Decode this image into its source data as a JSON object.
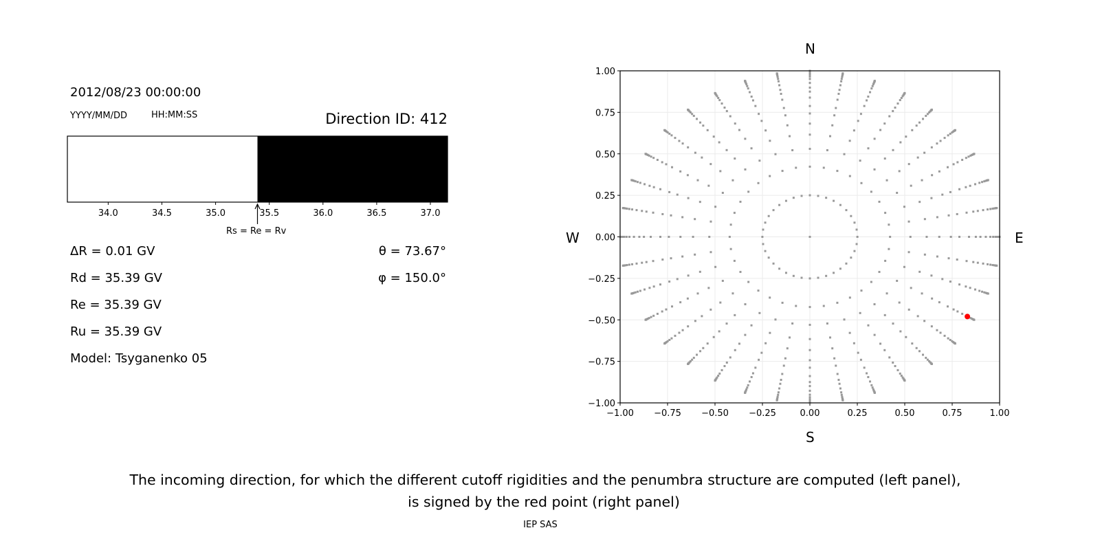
{
  "left_panel": {
    "datetime": "2012/08/23 00:00:00",
    "date_format": "YYYY/MM/DD",
    "time_format": "HH:MM:SS",
    "direction_id": "Direction ID: 412",
    "marker_label": "Rs = Re = Rv",
    "delta_r": "ΔR = 0.01 GV",
    "rd": "Rd = 35.39 GV",
    "re": "Re = 35.39 GV",
    "ru": "Ru = 35.39 GV",
    "model": "Model: Tsyganenko 05",
    "theta": "θ = 73.67°",
    "phi": "φ = 150.0°"
  },
  "compass": {
    "north": "N",
    "south": "S",
    "west": "W",
    "east": "E"
  },
  "caption": {
    "line1": "The incoming direction, for which the different cutoff rigidities and the penumbra structure are computed (left panel),",
    "line2": "is signed by the red point (right panel)",
    "credit": "IEP SAS"
  },
  "chart_data": [
    {
      "type": "bar",
      "title": "",
      "xlim": [
        33.62,
        37.16
      ],
      "xticks": [
        "34.0",
        "34.5",
        "35.0",
        "35.5",
        "36.0",
        "36.5",
        "37.0"
      ],
      "segments": [
        {
          "from": 33.62,
          "to": 35.39,
          "color": "#ffffff",
          "meaning": "allowed"
        },
        {
          "from": 35.39,
          "to": 37.16,
          "color": "#000000",
          "meaning": "forbidden"
        }
      ],
      "marker": 35.39
    },
    {
      "type": "scatter",
      "title": "",
      "xlim": [
        -1.0,
        1.0
      ],
      "ylim": [
        -1.0,
        1.0
      ],
      "xticks": [
        "−1.00",
        "−0.75",
        "−0.50",
        "−0.25",
        "0.00",
        "0.25",
        "0.50",
        "0.75",
        "1.00"
      ],
      "yticks": [
        "1.00",
        "0.75",
        "0.50",
        "0.25",
        "0.00",
        "−0.25",
        "−0.50",
        "−0.75",
        "−1.00"
      ],
      "grid": true,
      "grid_directions": {
        "theta_deg": [
          0,
          14.5,
          25,
          32,
          38,
          43,
          48,
          52,
          57,
          61,
          64,
          68,
          72,
          75,
          78,
          80.5,
          83,
          85,
          87,
          89
        ],
        "phi_step_deg": 10
      },
      "grid_color": "#999999",
      "selected": {
        "theta_deg": 73.67,
        "phi_deg": 150.0,
        "x": 0.83,
        "y": -0.48,
        "color": "#ff0000"
      }
    }
  ]
}
